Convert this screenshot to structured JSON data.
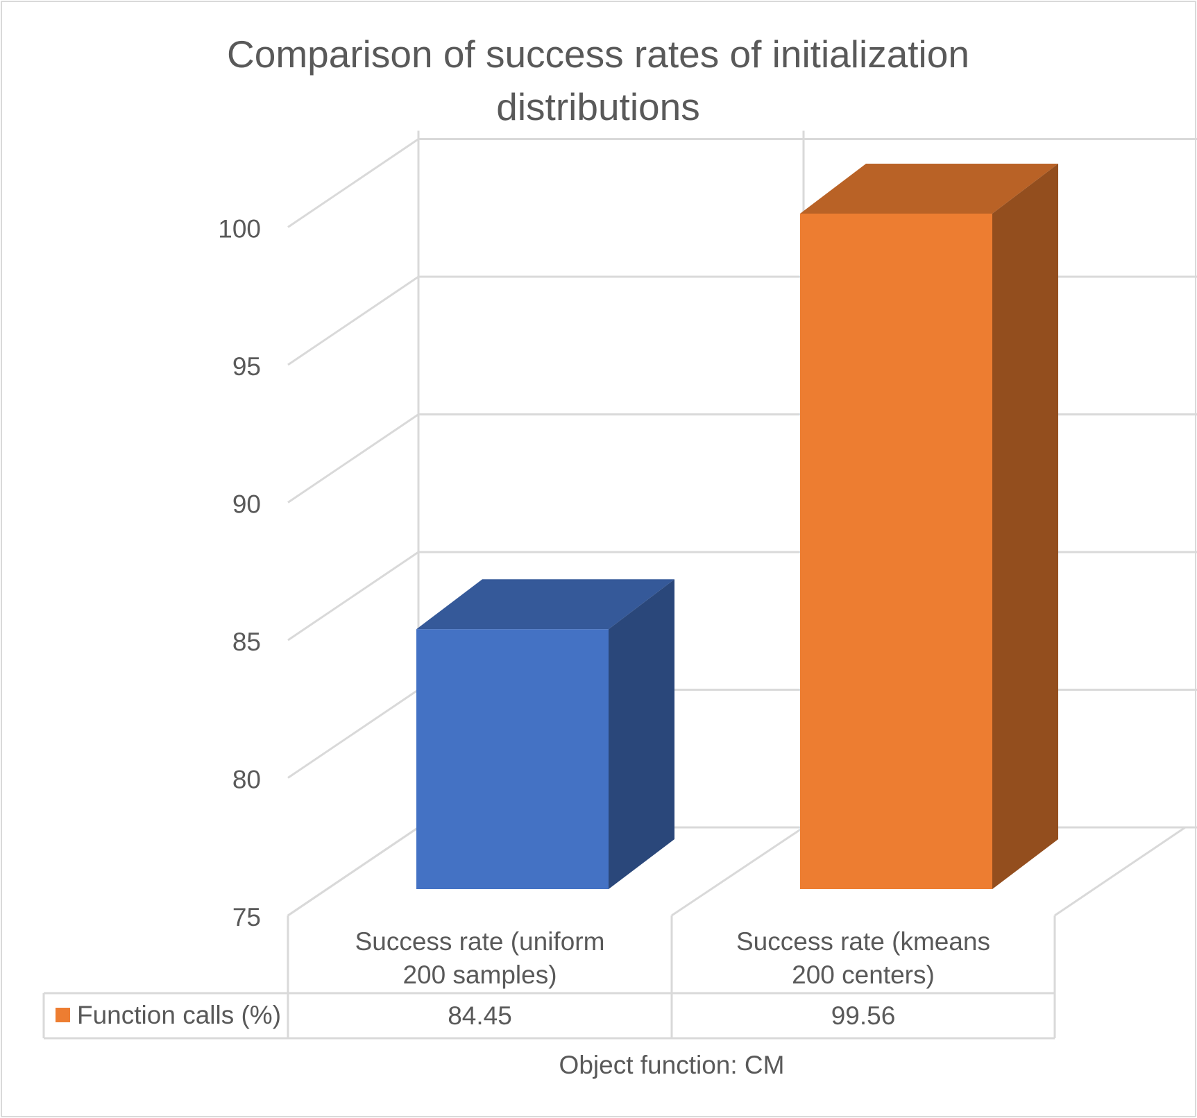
{
  "chart_data": {
    "type": "bar",
    "style": "3d-column",
    "title_lines": [
      "Comparison of success rates of initialization",
      "distributions"
    ],
    "categories": [
      {
        "lines": [
          "Success rate (uniform",
          "200 samples)"
        ]
      },
      {
        "lines": [
          "Success rate (kmeans",
          "200 centers)"
        ]
      }
    ],
    "series": [
      {
        "name": "Function calls (%)",
        "values": [
          84.45,
          99.56
        ],
        "value_labels": [
          "84.45",
          "99.56"
        ]
      }
    ],
    "bar_colors": [
      "#4472C4",
      "#ED7D31"
    ],
    "legend_swatch_color": "#ED7D31",
    "ylim": [
      75,
      100
    ],
    "yticks": [
      75,
      80,
      85,
      90,
      95,
      100
    ],
    "ytick_labels": [
      "75",
      "80",
      "85",
      "90",
      "95",
      "100"
    ],
    "xlabel": "Object function: CM",
    "ylabel": "",
    "grid": true,
    "legend": "data-table"
  }
}
